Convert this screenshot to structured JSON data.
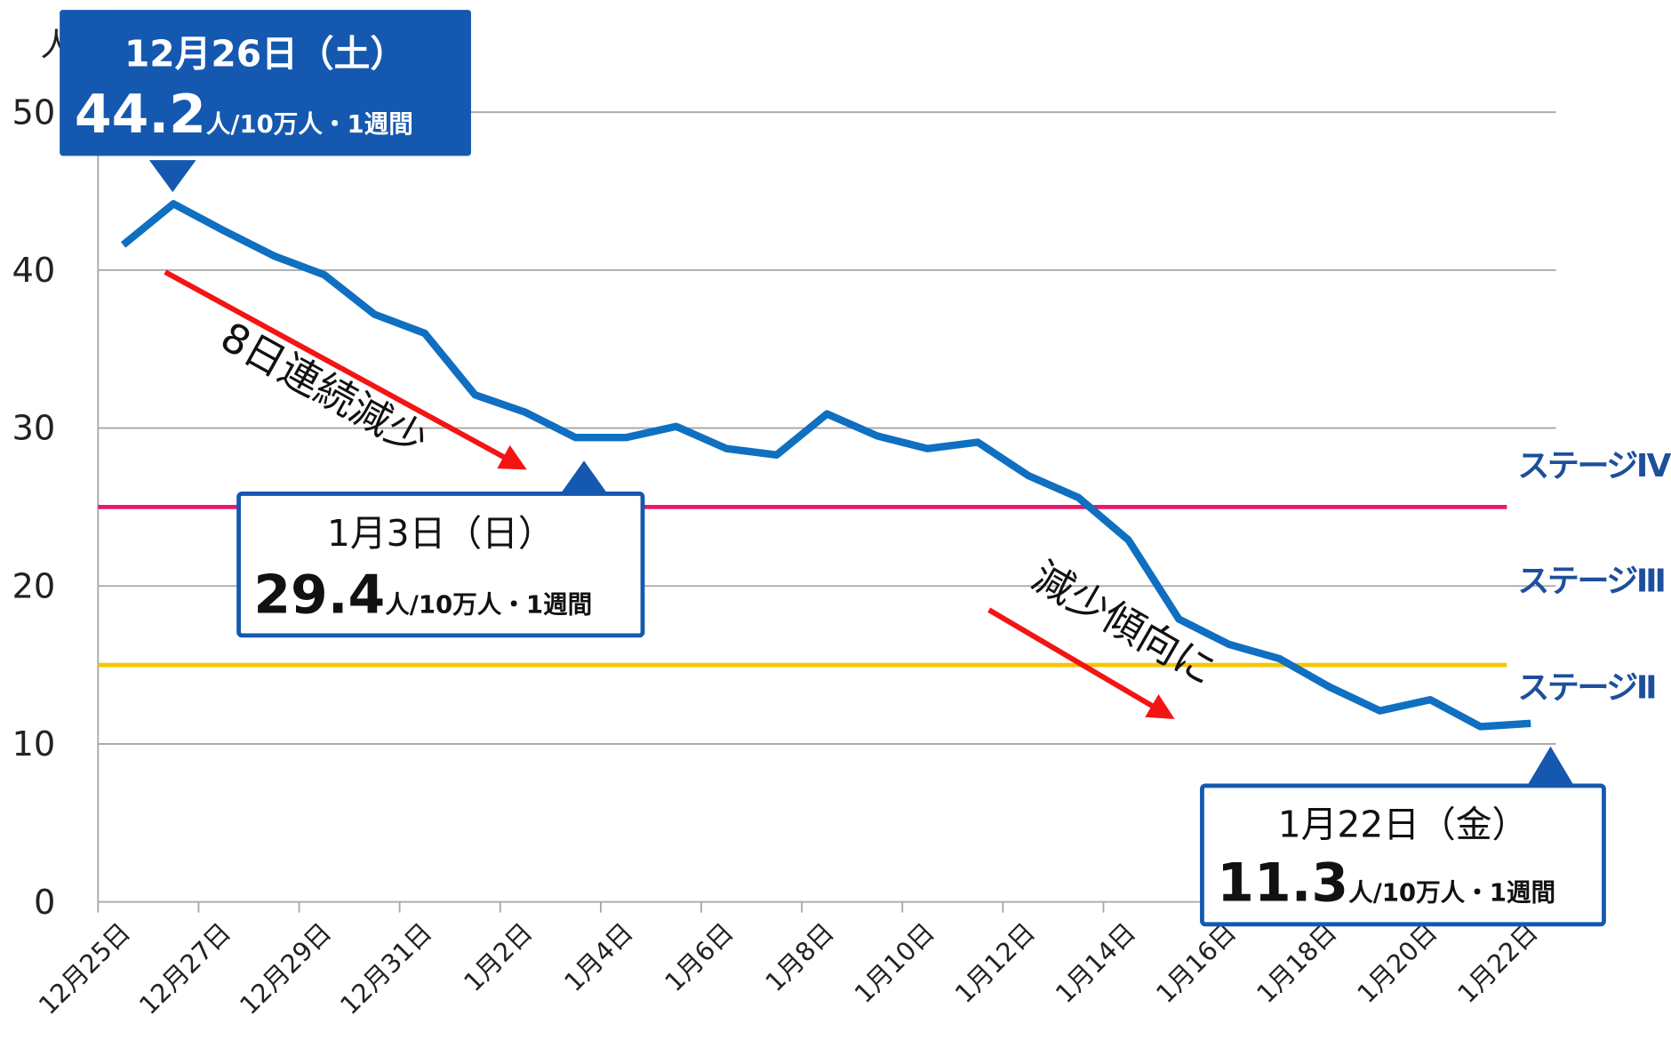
{
  "chart_data": {
    "type": "line",
    "y_unit": "人",
    "categories": [
      "12月25日",
      null,
      "12月27日",
      null,
      "12月29日",
      null,
      "12月31日",
      null,
      "1月2日",
      null,
      "1月4日",
      null,
      "1月6日",
      null,
      "1月8日",
      null,
      "1月10日",
      null,
      "1月12日",
      null,
      "1月14日",
      null,
      "1月16日",
      null,
      "1月18日",
      null,
      "1月20日",
      null,
      "1月22日"
    ],
    "values": [
      41.6,
      44.2,
      42.5,
      40.9,
      39.7,
      37.2,
      36.0,
      32.1,
      31.0,
      29.4,
      29.4,
      30.1,
      28.7,
      28.3,
      30.9,
      29.5,
      28.7,
      29.1,
      27.0,
      25.6,
      22.9,
      17.9,
      16.3,
      15.4,
      13.6,
      12.1,
      12.8,
      11.1,
      11.3
    ],
    "color": "#0f6fc1",
    "ylim": [
      0,
      50
    ],
    "yticks": [
      0,
      10,
      20,
      30,
      40,
      50
    ],
    "grid": true,
    "reference_lines": [
      {
        "value": 25,
        "color": "#e9186e"
      },
      {
        "value": 15,
        "color": "#f6c300"
      }
    ],
    "stage_labels": [
      "ステージⅣ",
      "ステージⅢ",
      "ステージⅡ"
    ],
    "callout_unit": "人/10万人・1週間",
    "callouts": [
      "12月26日（土）",
      "1月3日（日）",
      "1月22日（金）"
    ],
    "annotations": [
      "8日連続減少",
      "減少傾向に"
    ]
  }
}
